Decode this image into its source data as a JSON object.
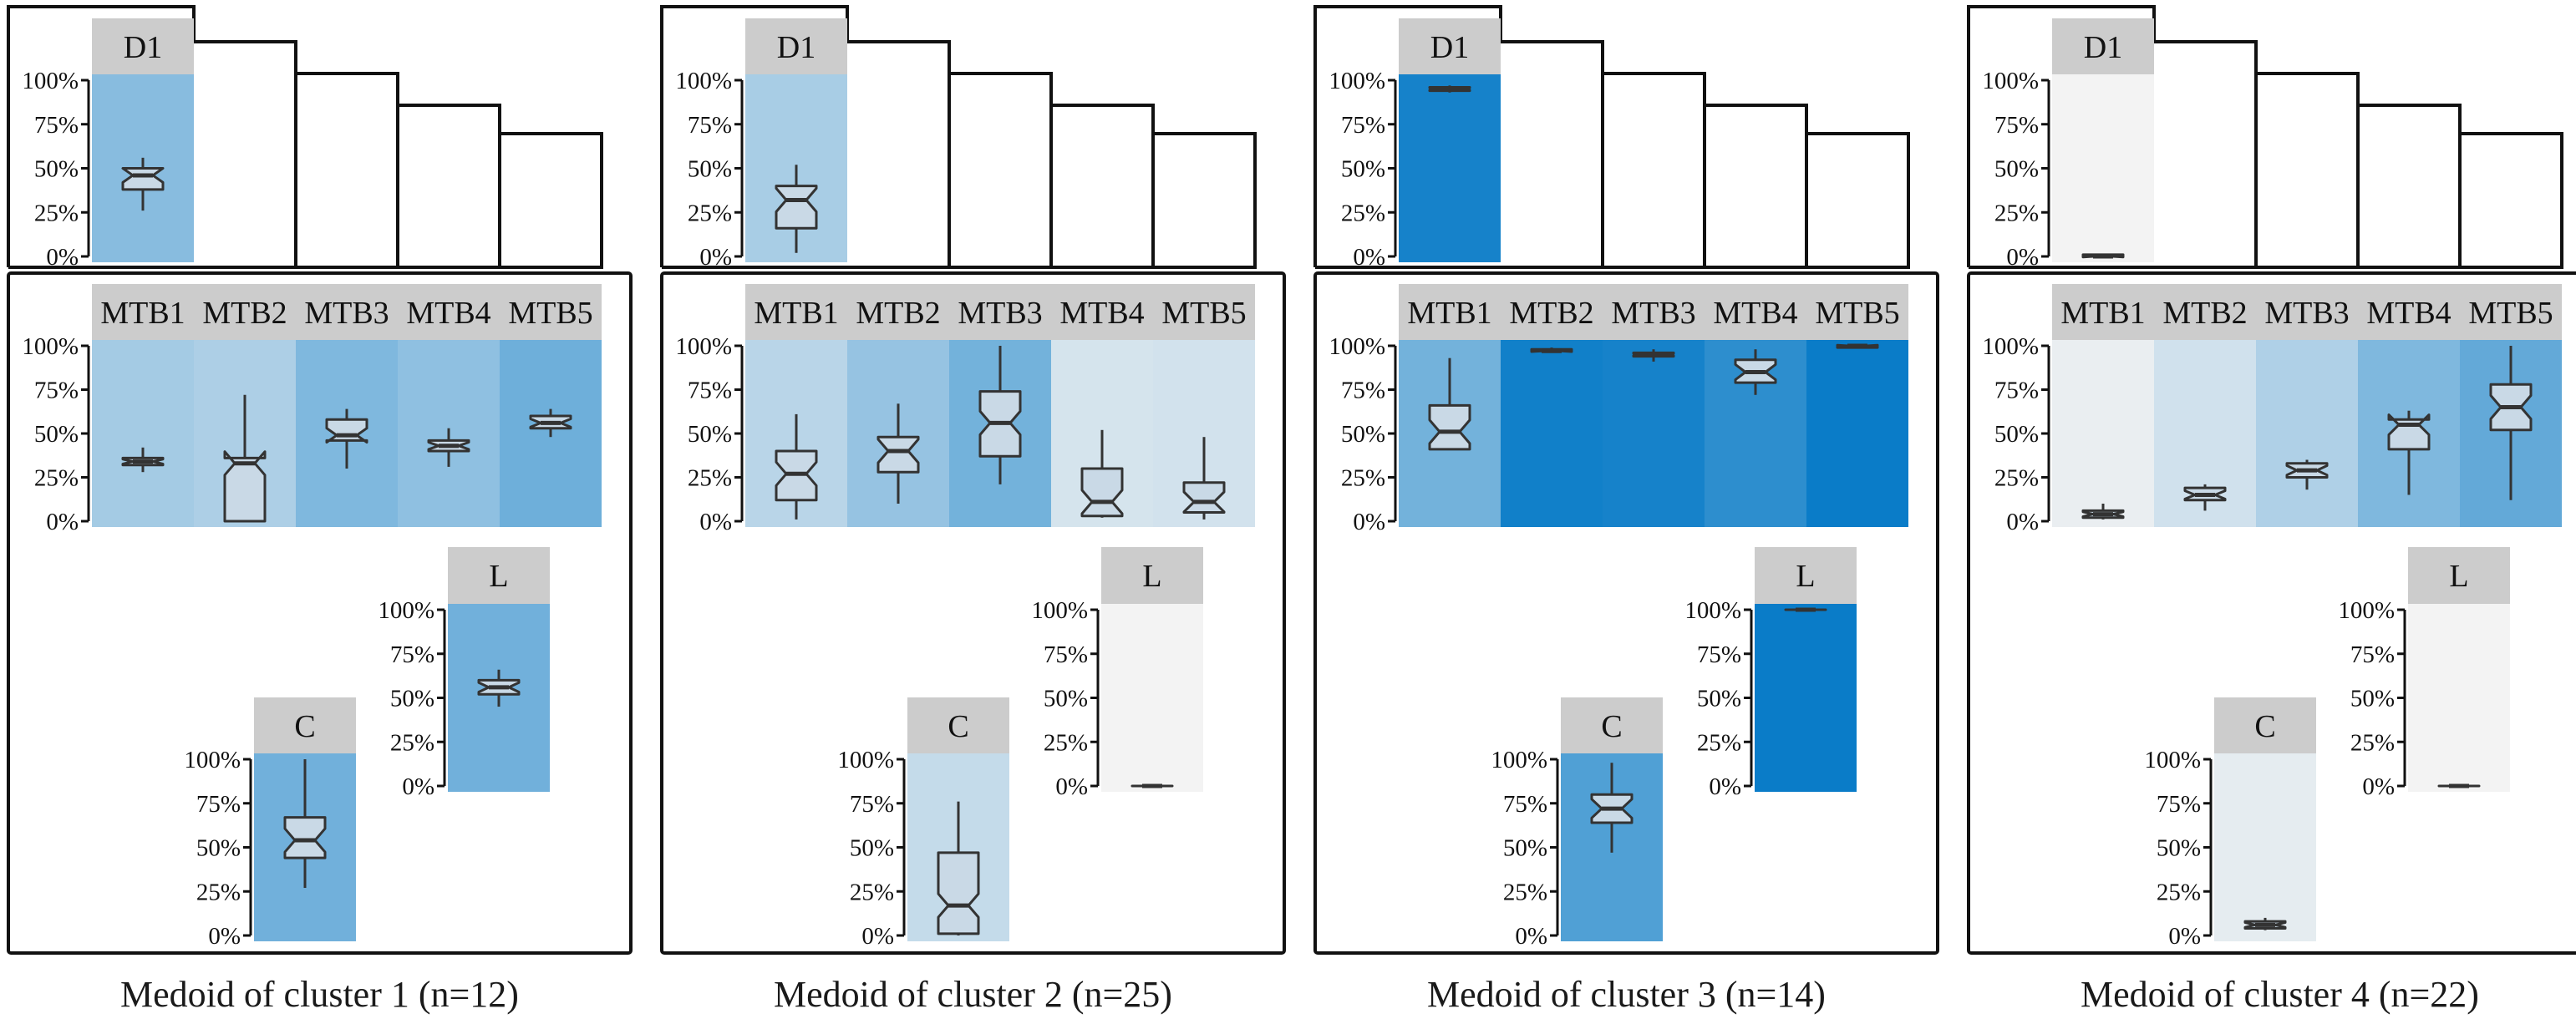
{
  "colors": {
    "strip": "#cccccc",
    "frame": "#111111",
    "box_fill": "#c9d9e6",
    "box_stroke": "#333333",
    "cell_low": "#f3f3f3",
    "cell_high": "#0a7cc8"
  },
  "chart_data": [
    {
      "type": "boxplot",
      "caption": "Medoid of cluster 1 (n=12)",
      "yticks": [
        "100%",
        "75%",
        "50%",
        "25%",
        "0%"
      ],
      "panels": [
        {
          "label": "D1",
          "group": "top",
          "mean": 0.46,
          "box": {
            "min": 0.26,
            "q1": 0.38,
            "median": 0.46,
            "q3": 0.5,
            "max": 0.56
          }
        },
        {
          "label": "MTB1",
          "group": "middle",
          "mean": 0.34,
          "box": {
            "min": 0.28,
            "q1": 0.32,
            "median": 0.34,
            "q3": 0.36,
            "max": 0.42
          }
        },
        {
          "label": "MTB2",
          "group": "middle",
          "mean": 0.3,
          "box": {
            "min": 0.0,
            "q1": 0.0,
            "median": 0.33,
            "q3": 0.36,
            "max": 0.72
          }
        },
        {
          "label": "MTB3",
          "group": "middle",
          "mean": 0.5,
          "box": {
            "min": 0.3,
            "q1": 0.46,
            "median": 0.49,
            "q3": 0.58,
            "max": 0.64
          }
        },
        {
          "label": "MTB4",
          "group": "middle",
          "mean": 0.43,
          "box": {
            "min": 0.31,
            "q1": 0.4,
            "median": 0.43,
            "q3": 0.46,
            "max": 0.53
          }
        },
        {
          "label": "MTB5",
          "group": "middle",
          "mean": 0.57,
          "box": {
            "min": 0.48,
            "q1": 0.53,
            "median": 0.56,
            "q3": 0.6,
            "max": 0.64
          }
        },
        {
          "label": "C",
          "group": "bottom-left",
          "mean": 0.56,
          "box": {
            "min": 0.27,
            "q1": 0.44,
            "median": 0.54,
            "q3": 0.67,
            "max": 1.0
          }
        },
        {
          "label": "L",
          "group": "bottom-right",
          "mean": 0.56,
          "box": {
            "min": 0.45,
            "q1": 0.52,
            "median": 0.56,
            "q3": 0.6,
            "max": 0.66
          }
        }
      ]
    },
    {
      "type": "boxplot",
      "caption": "Medoid of cluster 2 (n=25)",
      "yticks": [
        "100%",
        "75%",
        "50%",
        "25%",
        "0%"
      ],
      "panels": [
        {
          "label": "D1",
          "group": "top",
          "mean": 0.32,
          "box": {
            "min": 0.02,
            "q1": 0.16,
            "median": 0.32,
            "q3": 0.4,
            "max": 0.52
          }
        },
        {
          "label": "MTB1",
          "group": "middle",
          "mean": 0.25,
          "box": {
            "min": 0.01,
            "q1": 0.12,
            "median": 0.27,
            "q3": 0.4,
            "max": 0.61
          }
        },
        {
          "label": "MTB2",
          "group": "middle",
          "mean": 0.4,
          "box": {
            "min": 0.1,
            "q1": 0.28,
            "median": 0.4,
            "q3": 0.48,
            "max": 0.67
          }
        },
        {
          "label": "MTB3",
          "group": "middle",
          "mean": 0.55,
          "box": {
            "min": 0.21,
            "q1": 0.37,
            "median": 0.56,
            "q3": 0.74,
            "max": 1.0
          }
        },
        {
          "label": "MTB4",
          "group": "middle",
          "mean": 0.13,
          "box": {
            "min": 0.02,
            "q1": 0.03,
            "median": 0.11,
            "q3": 0.3,
            "max": 0.52
          }
        },
        {
          "label": "MTB5",
          "group": "middle",
          "mean": 0.14,
          "box": {
            "min": 0.01,
            "q1": 0.05,
            "median": 0.11,
            "q3": 0.22,
            "max": 0.48
          }
        },
        {
          "label": "C",
          "group": "bottom-left",
          "mean": 0.2,
          "box": {
            "min": 0.0,
            "q1": 0.01,
            "median": 0.17,
            "q3": 0.47,
            "max": 0.76
          }
        },
        {
          "label": "L",
          "group": "bottom-right",
          "mean": 0.0,
          "box": {
            "min": 0.0,
            "q1": 0.0,
            "median": 0.0,
            "q3": 0.0,
            "max": 0.0
          }
        }
      ]
    },
    {
      "type": "boxplot",
      "caption": "Medoid of cluster 3 (n=14)",
      "yticks": [
        "100%",
        "75%",
        "50%",
        "25%",
        "0%"
      ],
      "panels": [
        {
          "label": "D1",
          "group": "top",
          "mean": 0.95,
          "box": {
            "min": 0.93,
            "q1": 0.94,
            "median": 0.95,
            "q3": 0.96,
            "max": 0.97
          }
        },
        {
          "label": "MTB1",
          "group": "middle",
          "mean": 0.55,
          "box": {
            "min": 0.41,
            "q1": 0.41,
            "median": 0.51,
            "q3": 0.66,
            "max": 0.93
          }
        },
        {
          "label": "MTB2",
          "group": "middle",
          "mean": 0.97,
          "box": {
            "min": 0.96,
            "q1": 0.97,
            "median": 0.97,
            "q3": 0.98,
            "max": 0.99
          }
        },
        {
          "label": "MTB3",
          "group": "middle",
          "mean": 0.95,
          "box": {
            "min": 0.91,
            "q1": 0.94,
            "median": 0.95,
            "q3": 0.96,
            "max": 0.98
          }
        },
        {
          "label": "MTB4",
          "group": "middle",
          "mean": 0.85,
          "box": {
            "min": 0.72,
            "q1": 0.79,
            "median": 0.85,
            "q3": 0.92,
            "max": 0.98
          }
        },
        {
          "label": "MTB5",
          "group": "middle",
          "mean": 1.0,
          "box": {
            "min": 0.99,
            "q1": 0.99,
            "median": 1.0,
            "q3": 1.0,
            "max": 1.0
          }
        },
        {
          "label": "C",
          "group": "bottom-left",
          "mean": 0.7,
          "box": {
            "min": 0.47,
            "q1": 0.64,
            "median": 0.72,
            "q3": 0.8,
            "max": 0.98
          }
        },
        {
          "label": "L",
          "group": "bottom-right",
          "mean": 1.0,
          "box": {
            "min": 0.99,
            "q1": 1.0,
            "median": 1.0,
            "q3": 1.0,
            "max": 1.0
          }
        }
      ]
    },
    {
      "type": "boxplot",
      "caption": "Medoid of cluster 4 (n=22)",
      "yticks": [
        "100%",
        "75%",
        "50%",
        "25%",
        "0%"
      ],
      "panels": [
        {
          "label": "D1",
          "group": "top",
          "mean": 0.0,
          "box": {
            "min": 0.0,
            "q1": 0.0,
            "median": 0.0,
            "q3": 0.01,
            "max": 0.01
          }
        },
        {
          "label": "MTB1",
          "group": "middle",
          "mean": 0.04,
          "box": {
            "min": 0.01,
            "q1": 0.02,
            "median": 0.04,
            "q3": 0.06,
            "max": 0.1
          }
        },
        {
          "label": "MTB2",
          "group": "middle",
          "mean": 0.15,
          "box": {
            "min": 0.06,
            "q1": 0.12,
            "median": 0.15,
            "q3": 0.19,
            "max": 0.21
          }
        },
        {
          "label": "MTB3",
          "group": "middle",
          "mean": 0.29,
          "box": {
            "min": 0.18,
            "q1": 0.25,
            "median": 0.29,
            "q3": 0.33,
            "max": 0.35
          }
        },
        {
          "label": "MTB4",
          "group": "middle",
          "mean": 0.5,
          "box": {
            "min": 0.15,
            "q1": 0.41,
            "median": 0.55,
            "q3": 0.58,
            "max": 0.63
          }
        },
        {
          "label": "MTB5",
          "group": "middle",
          "mean": 0.62,
          "box": {
            "min": 0.12,
            "q1": 0.52,
            "median": 0.65,
            "q3": 0.78,
            "max": 1.0
          }
        },
        {
          "label": "C",
          "group": "bottom-left",
          "mean": 0.06,
          "box": {
            "min": 0.03,
            "q1": 0.04,
            "median": 0.06,
            "q3": 0.08,
            "max": 0.1
          }
        },
        {
          "label": "L",
          "group": "bottom-right",
          "mean": 0.0,
          "box": {
            "min": 0.0,
            "q1": 0.0,
            "median": 0.0,
            "q3": 0.0,
            "max": 0.0
          }
        }
      ]
    }
  ]
}
